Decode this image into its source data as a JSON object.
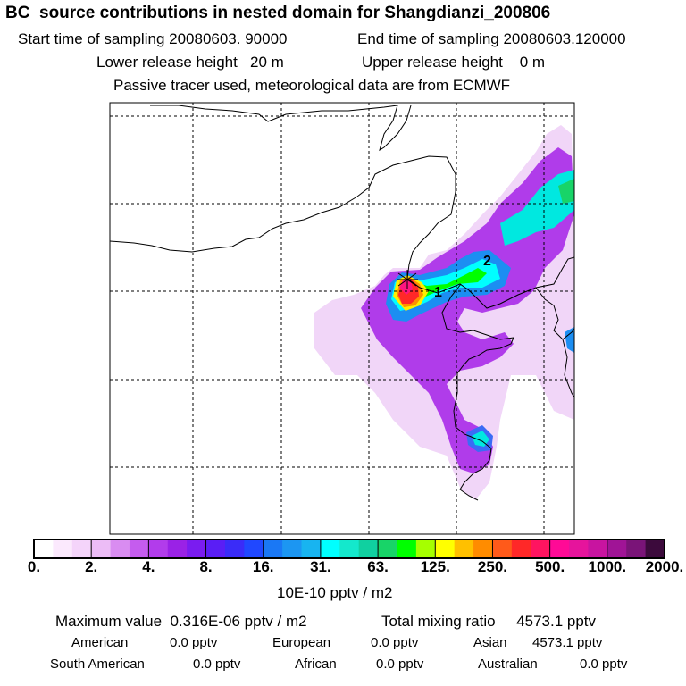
{
  "header": {
    "title": "BC  source contributions in nested domain for Shangdianzi_200806",
    "start_label": "Start time of sampling 20080603. 90000",
    "end_label": "End time of sampling 20080603.120000",
    "lower_label": "Lower release height   20 m",
    "upper_label": "Upper release height    0 m",
    "tracer_note": "Passive tracer used, meteorological data are from ECMWF"
  },
  "map": {
    "site_markers": [
      "1",
      "2"
    ]
  },
  "colorbar": {
    "ticks": [
      "0.",
      "2.",
      "4.",
      "8.",
      "16.",
      "31.",
      "63.",
      "125.",
      "250.",
      "500.",
      "1000.",
      "2000."
    ],
    "units": "10E-10 pptv / m2",
    "colors": [
      "#ffffff",
      "#fbe9fd",
      "#f4d4fa",
      "#ecbcf6",
      "#d98cf1",
      "#c55cee",
      "#b23ceb",
      "#9a22e6",
      "#7a1cf0",
      "#5a1ef5",
      "#3a2cf8",
      "#2048ff",
      "#1a78f5",
      "#1c96f2",
      "#18b4f0",
      "#00ffff",
      "#14e8cc",
      "#10d0a0",
      "#18d468",
      "#00ff00",
      "#a6ff00",
      "#ffff00",
      "#ffc000",
      "#ff8c00",
      "#ff5a1a",
      "#ff2828",
      "#ff1460",
      "#ff0a96",
      "#e6149c",
      "#c814a0",
      "#a01496",
      "#7a1478",
      "#3c0a3c"
    ]
  },
  "footer": {
    "max_label": "Maximum value  0.316E-06 pptv / m2",
    "total_label": "Total mixing ratio     4573.1 pptv",
    "american_label": "American",
    "american_value": "0.0 pptv",
    "european_label": "European",
    "european_value": "0.0 pptv",
    "asian_label": "Asian",
    "asian_value": "4573.1 pptv",
    "south_american_label": "South American",
    "south_american_value": "0.0 pptv",
    "african_label": "African",
    "african_value": "0.0 pptv",
    "australian_label": "Australian",
    "australian_value": "0.0 pptv"
  }
}
